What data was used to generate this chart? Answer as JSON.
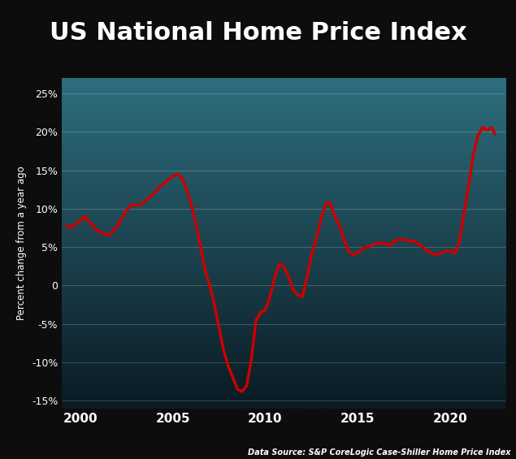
{
  "title": "US National Home Price Index",
  "ylabel": "Percent change from a year ago",
  "source": "Data Source: S&P CoreLogic Case-Shiller Home Price Index",
  "background_title": "#000000",
  "line_color": "#cc0000",
  "line_width": 2.5,
  "ylim": [
    -16,
    27
  ],
  "yticks": [
    -15,
    -10,
    -5,
    0,
    5,
    10,
    15,
    20,
    25
  ],
  "ytick_labels": [
    "-15%",
    "-10%",
    "-5%",
    "0",
    "5%",
    "10%",
    "15%",
    "20%",
    "25%"
  ],
  "xticks": [
    2000,
    2005,
    2010,
    2015,
    2020
  ],
  "xlim": [
    1999.0,
    2023.0
  ],
  "grad_top": "#2e6e7e",
  "grad_bottom": "#0a1a22",
  "outer_bg": "#0d0d0d",
  "years": [
    1999.25,
    1999.5,
    1999.75,
    2000.0,
    2000.25,
    2000.5,
    2000.75,
    2001.0,
    2001.25,
    2001.5,
    2001.75,
    2002.0,
    2002.25,
    2002.5,
    2002.75,
    2003.0,
    2003.25,
    2003.5,
    2003.75,
    2004.0,
    2004.25,
    2004.5,
    2004.75,
    2005.0,
    2005.25,
    2005.5,
    2005.75,
    2006.0,
    2006.25,
    2006.5,
    2006.75,
    2007.0,
    2007.25,
    2007.5,
    2007.75,
    2008.0,
    2008.25,
    2008.5,
    2008.75,
    2009.0,
    2009.25,
    2009.5,
    2009.75,
    2010.0,
    2010.25,
    2010.5,
    2010.75,
    2011.0,
    2011.25,
    2011.5,
    2011.75,
    2012.0,
    2012.25,
    2012.5,
    2012.75,
    2013.0,
    2013.25,
    2013.5,
    2013.75,
    2014.0,
    2014.25,
    2014.5,
    2014.75,
    2015.0,
    2015.25,
    2015.5,
    2015.75,
    2016.0,
    2016.25,
    2016.5,
    2016.75,
    2017.0,
    2017.25,
    2017.5,
    2017.75,
    2018.0,
    2018.25,
    2018.5,
    2018.75,
    2019.0,
    2019.25,
    2019.5,
    2019.75,
    2020.0,
    2020.25,
    2020.5,
    2020.75,
    2021.0,
    2021.25,
    2021.5,
    2021.75,
    2022.0,
    2022.25,
    2022.42
  ],
  "values": [
    7.8,
    7.5,
    8.0,
    8.5,
    9.0,
    8.2,
    7.5,
    7.0,
    6.8,
    6.5,
    7.0,
    7.8,
    8.8,
    9.8,
    10.5,
    10.5,
    10.5,
    11.0,
    11.5,
    12.0,
    12.8,
    13.2,
    13.8,
    14.2,
    14.5,
    14.0,
    12.5,
    10.5,
    8.0,
    5.0,
    2.0,
    0.0,
    -2.5,
    -5.5,
    -8.5,
    -10.5,
    -12.0,
    -13.5,
    -13.8,
    -13.0,
    -9.5,
    -4.5,
    -3.5,
    -3.2,
    -1.5,
    1.0,
    2.8,
    2.5,
    1.2,
    -0.5,
    -1.2,
    -1.5,
    1.0,
    4.0,
    6.0,
    8.5,
    10.5,
    10.8,
    9.0,
    8.0,
    6.0,
    4.5,
    4.0,
    4.2,
    4.8,
    5.0,
    5.2,
    5.5,
    5.5,
    5.5,
    5.2,
    5.8,
    6.0,
    6.0,
    5.8,
    5.8,
    5.5,
    5.0,
    4.5,
    4.2,
    4.0,
    4.2,
    4.5,
    4.5,
    4.2,
    5.8,
    9.5,
    13.0,
    17.0,
    19.5,
    20.6,
    20.2,
    20.6,
    19.7
  ]
}
